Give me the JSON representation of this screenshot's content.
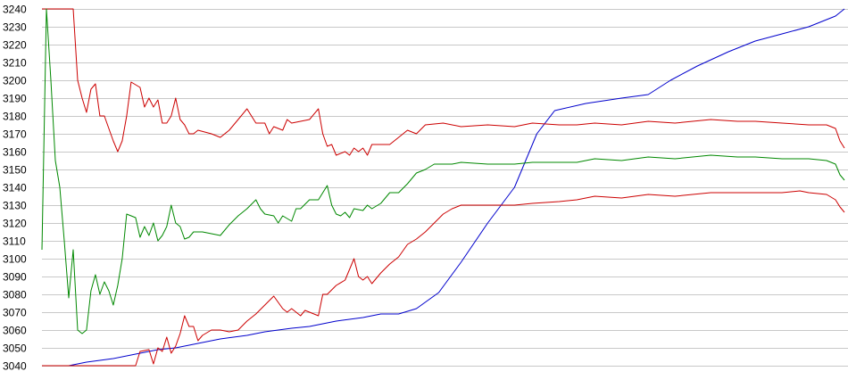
{
  "chart_data": {
    "type": "line",
    "title": "",
    "xlabel": "",
    "ylabel": "",
    "ylim": [
      3040,
      3240
    ],
    "yticks": [
      3040,
      3050,
      3060,
      3070,
      3080,
      3090,
      3100,
      3110,
      3120,
      3130,
      3140,
      3150,
      3160,
      3170,
      3180,
      3190,
      3200,
      3210,
      3220,
      3230,
      3240
    ],
    "grid": "horizontal",
    "legend": "none",
    "x_range": [
      0,
      180
    ],
    "series": [
      {
        "color": "#0000cc",
        "points": [
          [
            0,
            3040
          ],
          [
            6,
            3040
          ],
          [
            10,
            3042
          ],
          [
            16,
            3044
          ],
          [
            20,
            3046
          ],
          [
            26,
            3049
          ],
          [
            30,
            3050
          ],
          [
            36,
            3053
          ],
          [
            40,
            3055
          ],
          [
            46,
            3057
          ],
          [
            50,
            3059
          ],
          [
            56,
            3061
          ],
          [
            60,
            3062
          ],
          [
            66,
            3065
          ],
          [
            72,
            3067
          ],
          [
            76,
            3069
          ],
          [
            80,
            3069
          ],
          [
            84,
            3072
          ],
          [
            89,
            3081
          ],
          [
            94,
            3098
          ],
          [
            100,
            3120
          ],
          [
            106,
            3140
          ],
          [
            111,
            3170
          ],
          [
            115,
            3183
          ],
          [
            122,
            3187
          ],
          [
            130,
            3190
          ],
          [
            136,
            3192
          ],
          [
            141,
            3200
          ],
          [
            147,
            3208
          ],
          [
            154,
            3216
          ],
          [
            160,
            3222
          ],
          [
            166,
            3226
          ],
          [
            172,
            3230
          ],
          [
            178,
            3236
          ],
          [
            180,
            3240
          ]
        ]
      },
      {
        "color": "#cc0000",
        "points": [
          [
            0,
            3240
          ],
          [
            7,
            3240
          ],
          [
            8,
            3200
          ],
          [
            9,
            3190
          ],
          [
            10,
            3182
          ],
          [
            11,
            3195
          ],
          [
            12,
            3198
          ],
          [
            13,
            3180
          ],
          [
            14,
            3180
          ],
          [
            16,
            3166
          ],
          [
            17,
            3160
          ],
          [
            18,
            3166
          ],
          [
            19,
            3180
          ],
          [
            20,
            3199
          ],
          [
            22,
            3196
          ],
          [
            23,
            3185
          ],
          [
            24,
            3190
          ],
          [
            25,
            3185
          ],
          [
            26,
            3189
          ],
          [
            27,
            3176
          ],
          [
            28,
            3176
          ],
          [
            29,
            3180
          ],
          [
            30,
            3190
          ],
          [
            31,
            3178
          ],
          [
            32,
            3175
          ],
          [
            33,
            3170
          ],
          [
            34,
            3170
          ],
          [
            35,
            3172
          ],
          [
            38,
            3170
          ],
          [
            40,
            3168
          ],
          [
            42,
            3172
          ],
          [
            44,
            3178
          ],
          [
            46,
            3184
          ],
          [
            47,
            3180
          ],
          [
            48,
            3176
          ],
          [
            50,
            3176
          ],
          [
            51,
            3170
          ],
          [
            52,
            3174
          ],
          [
            54,
            3172
          ],
          [
            55,
            3178
          ],
          [
            56,
            3176
          ],
          [
            58,
            3177
          ],
          [
            60,
            3178
          ],
          [
            62,
            3184
          ],
          [
            63,
            3170
          ],
          [
            64,
            3163
          ],
          [
            65,
            3164
          ],
          [
            66,
            3158
          ],
          [
            68,
            3160
          ],
          [
            69,
            3158
          ],
          [
            70,
            3162
          ],
          [
            71,
            3160
          ],
          [
            72,
            3162
          ],
          [
            73,
            3158
          ],
          [
            74,
            3164
          ],
          [
            78,
            3164
          ],
          [
            80,
            3168
          ],
          [
            82,
            3172
          ],
          [
            84,
            3170
          ],
          [
            86,
            3175
          ],
          [
            90,
            3176
          ],
          [
            94,
            3174
          ],
          [
            100,
            3175
          ],
          [
            106,
            3174
          ],
          [
            110,
            3176
          ],
          [
            116,
            3175
          ],
          [
            120,
            3175
          ],
          [
            124,
            3176
          ],
          [
            130,
            3175
          ],
          [
            136,
            3177
          ],
          [
            142,
            3176
          ],
          [
            150,
            3178
          ],
          [
            156,
            3177
          ],
          [
            160,
            3177
          ],
          [
            166,
            3176
          ],
          [
            172,
            3175
          ],
          [
            176,
            3175
          ],
          [
            178,
            3173
          ],
          [
            179,
            3166
          ],
          [
            180,
            3162
          ]
        ]
      },
      {
        "color": "#008800",
        "points": [
          [
            0,
            3105
          ],
          [
            1,
            3240
          ],
          [
            2,
            3200
          ],
          [
            3,
            3155
          ],
          [
            4,
            3140
          ],
          [
            5,
            3110
          ],
          [
            6,
            3078
          ],
          [
            7,
            3105
          ],
          [
            8,
            3060
          ],
          [
            9,
            3058
          ],
          [
            10,
            3060
          ],
          [
            11,
            3082
          ],
          [
            12,
            3091
          ],
          [
            13,
            3080
          ],
          [
            14,
            3087
          ],
          [
            15,
            3082
          ],
          [
            16,
            3074
          ],
          [
            17,
            3085
          ],
          [
            18,
            3100
          ],
          [
            19,
            3125
          ],
          [
            20,
            3124
          ],
          [
            21,
            3123
          ],
          [
            22,
            3112
          ],
          [
            23,
            3118
          ],
          [
            24,
            3113
          ],
          [
            25,
            3120
          ],
          [
            26,
            3110
          ],
          [
            27,
            3113
          ],
          [
            28,
            3118
          ],
          [
            29,
            3130
          ],
          [
            30,
            3120
          ],
          [
            31,
            3118
          ],
          [
            32,
            3111
          ],
          [
            33,
            3112
          ],
          [
            34,
            3115
          ],
          [
            36,
            3115
          ],
          [
            38,
            3114
          ],
          [
            40,
            3113
          ],
          [
            42,
            3119
          ],
          [
            44,
            3124
          ],
          [
            46,
            3128
          ],
          [
            48,
            3133
          ],
          [
            49,
            3128
          ],
          [
            50,
            3125
          ],
          [
            52,
            3124
          ],
          [
            53,
            3120
          ],
          [
            54,
            3124
          ],
          [
            56,
            3121
          ],
          [
            57,
            3128
          ],
          [
            58,
            3128
          ],
          [
            60,
            3133
          ],
          [
            62,
            3133
          ],
          [
            64,
            3141
          ],
          [
            65,
            3130
          ],
          [
            66,
            3125
          ],
          [
            67,
            3124
          ],
          [
            68,
            3126
          ],
          [
            69,
            3123
          ],
          [
            70,
            3128
          ],
          [
            72,
            3127
          ],
          [
            73,
            3130
          ],
          [
            74,
            3128
          ],
          [
            76,
            3131
          ],
          [
            78,
            3137
          ],
          [
            80,
            3137
          ],
          [
            82,
            3142
          ],
          [
            84,
            3148
          ],
          [
            86,
            3150
          ],
          [
            88,
            3153
          ],
          [
            92,
            3153
          ],
          [
            94,
            3154
          ],
          [
            100,
            3153
          ],
          [
            106,
            3153
          ],
          [
            110,
            3154
          ],
          [
            116,
            3154
          ],
          [
            120,
            3154
          ],
          [
            124,
            3156
          ],
          [
            130,
            3155
          ],
          [
            136,
            3157
          ],
          [
            142,
            3156
          ],
          [
            150,
            3158
          ],
          [
            156,
            3157
          ],
          [
            160,
            3157
          ],
          [
            166,
            3156
          ],
          [
            172,
            3156
          ],
          [
            176,
            3155
          ],
          [
            178,
            3153
          ],
          [
            179,
            3147
          ],
          [
            180,
            3144
          ]
        ]
      },
      {
        "color": "#cc0000",
        "points": [
          [
            0,
            3040
          ],
          [
            14,
            3040
          ],
          [
            16,
            3040
          ],
          [
            21,
            3040
          ],
          [
            22,
            3048
          ],
          [
            24,
            3049
          ],
          [
            25,
            3041
          ],
          [
            26,
            3050
          ],
          [
            27,
            3048
          ],
          [
            28,
            3056
          ],
          [
            29,
            3047
          ],
          [
            30,
            3051
          ],
          [
            31,
            3058
          ],
          [
            32,
            3068
          ],
          [
            33,
            3062
          ],
          [
            34,
            3062
          ],
          [
            35,
            3054
          ],
          [
            36,
            3057
          ],
          [
            38,
            3060
          ],
          [
            40,
            3060
          ],
          [
            42,
            3059
          ],
          [
            44,
            3060
          ],
          [
            46,
            3065
          ],
          [
            48,
            3069
          ],
          [
            50,
            3074
          ],
          [
            52,
            3079
          ],
          [
            54,
            3072
          ],
          [
            55,
            3070
          ],
          [
            56,
            3072
          ],
          [
            58,
            3068
          ],
          [
            59,
            3071
          ],
          [
            60,
            3070
          ],
          [
            62,
            3068
          ],
          [
            63,
            3080
          ],
          [
            64,
            3080
          ],
          [
            66,
            3085
          ],
          [
            68,
            3088
          ],
          [
            70,
            3100
          ],
          [
            71,
            3090
          ],
          [
            72,
            3088
          ],
          [
            73,
            3090
          ],
          [
            74,
            3086
          ],
          [
            76,
            3092
          ],
          [
            78,
            3097
          ],
          [
            80,
            3101
          ],
          [
            82,
            3108
          ],
          [
            84,
            3111
          ],
          [
            86,
            3115
          ],
          [
            88,
            3120
          ],
          [
            90,
            3125
          ],
          [
            92,
            3128
          ],
          [
            94,
            3130
          ],
          [
            100,
            3130
          ],
          [
            106,
            3130
          ],
          [
            110,
            3131
          ],
          [
            116,
            3132
          ],
          [
            120,
            3133
          ],
          [
            124,
            3135
          ],
          [
            130,
            3134
          ],
          [
            136,
            3136
          ],
          [
            142,
            3135
          ],
          [
            150,
            3137
          ],
          [
            156,
            3137
          ],
          [
            160,
            3137
          ],
          [
            166,
            3137
          ],
          [
            170,
            3138
          ],
          [
            172,
            3137
          ],
          [
            176,
            3136
          ],
          [
            178,
            3133
          ],
          [
            179,
            3129
          ],
          [
            180,
            3126
          ]
        ]
      }
    ]
  }
}
